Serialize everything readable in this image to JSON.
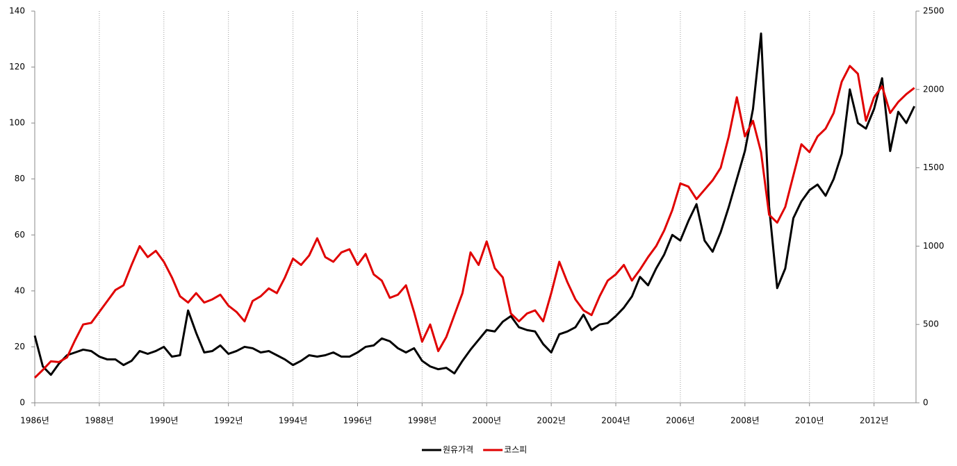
{
  "chart_data": {
    "type": "line",
    "xlim": [
      1986,
      2013.3
    ],
    "xticks": [
      {
        "value": 1986,
        "label": "1986년"
      },
      {
        "value": 1988,
        "label": "1988년"
      },
      {
        "value": 1990,
        "label": "1990년"
      },
      {
        "value": 1992,
        "label": "1992년"
      },
      {
        "value": 1994,
        "label": "1994년"
      },
      {
        "value": 1996,
        "label": "1996년"
      },
      {
        "value": 1998,
        "label": "1998년"
      },
      {
        "value": 2000,
        "label": "2000년"
      },
      {
        "value": 2002,
        "label": "2002년"
      },
      {
        "value": 2004,
        "label": "2004년"
      },
      {
        "value": 2006,
        "label": "2006년"
      },
      {
        "value": 2008,
        "label": "2008년"
      },
      {
        "value": 2010,
        "label": "2010년"
      },
      {
        "value": 2012,
        "label": "2012년"
      }
    ],
    "ylim": [
      0,
      140
    ],
    "yticks": [
      0,
      20,
      40,
      60,
      80,
      100,
      120,
      140
    ],
    "y2lim": [
      0,
      2500
    ],
    "y2ticks": [
      0,
      500,
      1000,
      1500,
      2000,
      2500
    ],
    "grid": true,
    "legend": "bottom",
    "x": [
      1986,
      1986.25,
      1986.5,
      1986.75,
      1987,
      1987.25,
      1987.5,
      1987.75,
      1988,
      1988.25,
      1988.5,
      1988.75,
      1989,
      1989.25,
      1989.5,
      1989.75,
      1990,
      1990.25,
      1990.5,
      1990.75,
      1991,
      1991.25,
      1991.5,
      1991.75,
      1992,
      1992.25,
      1992.5,
      1992.75,
      1993,
      1993.25,
      1993.5,
      1993.75,
      1994,
      1994.25,
      1994.5,
      1994.75,
      1995,
      1995.25,
      1995.5,
      1995.75,
      1996,
      1996.25,
      1996.5,
      1996.75,
      1997,
      1997.25,
      1997.5,
      1997.75,
      1998,
      1998.25,
      1998.5,
      1998.75,
      1999,
      1999.25,
      1999.5,
      1999.75,
      2000,
      2000.25,
      2000.5,
      2000.75,
      2001,
      2001.25,
      2001.5,
      2001.75,
      2002,
      2002.25,
      2002.5,
      2002.75,
      2003,
      2003.25,
      2003.5,
      2003.75,
      2004,
      2004.25,
      2004.5,
      2004.75,
      2005,
      2005.25,
      2005.5,
      2005.75,
      2006,
      2006.25,
      2006.5,
      2006.75,
      2007,
      2007.25,
      2007.5,
      2007.75,
      2008,
      2008.25,
      2008.5,
      2008.75,
      2009,
      2009.25,
      2009.5,
      2009.75,
      2010,
      2010.25,
      2010.5,
      2010.75,
      2011,
      2011.25,
      2011.5,
      2011.75,
      2012,
      2012.25,
      2012.5,
      2012.75,
      2013,
      2013.25
    ],
    "series": [
      {
        "name": "원유가격",
        "color": "#000000",
        "values": [
          24,
          13,
          10,
          14,
          17,
          18,
          19,
          18.5,
          16.5,
          15.5,
          15.5,
          13.5,
          15,
          18.5,
          17.5,
          18.5,
          20,
          16.5,
          17,
          33,
          25,
          18,
          18.5,
          20.5,
          17.5,
          18.5,
          20,
          19.5,
          18,
          18.5,
          17,
          15.5,
          13.5,
          15,
          17,
          16.5,
          17,
          18,
          16.5,
          16.5,
          18,
          20,
          20.5,
          23,
          22,
          19.5,
          18,
          19.5,
          15,
          13,
          12,
          12.5,
          10.5,
          15,
          19,
          22.5,
          26,
          25.5,
          29,
          31,
          27,
          26,
          25.5,
          21,
          18,
          24.5,
          25.5,
          27,
          31.5,
          26,
          28,
          28.5,
          31,
          34,
          38,
          45,
          42,
          48,
          53,
          60,
          58,
          65,
          71,
          58,
          54,
          61,
          70,
          80,
          90,
          105,
          132,
          70,
          41,
          48,
          66,
          72,
          76,
          78,
          74,
          80,
          89,
          112,
          100,
          98,
          105,
          116,
          90,
          104,
          100,
          106
        ]
      },
      {
        "name": "코스피",
        "color": "#e00000",
        "axis": "y2",
        "values": [
          160,
          210,
          265,
          260,
          290,
          400,
          500,
          510,
          580,
          650,
          720,
          750,
          880,
          1000,
          930,
          970,
          900,
          800,
          680,
          640,
          700,
          640,
          660,
          690,
          620,
          580,
          520,
          650,
          680,
          730,
          700,
          800,
          920,
          880,
          940,
          1050,
          930,
          900,
          960,
          980,
          880,
          950,
          820,
          780,
          670,
          690,
          750,
          580,
          390,
          500,
          330,
          420,
          560,
          700,
          960,
          880,
          1030,
          860,
          800,
          570,
          520,
          570,
          590,
          520,
          700,
          900,
          770,
          660,
          590,
          560,
          680,
          780,
          820,
          880,
          780,
          850,
          930,
          1000,
          1100,
          1230,
          1400,
          1380,
          1300,
          1360,
          1420,
          1500,
          1700,
          1950,
          1700,
          1800,
          1600,
          1200,
          1150,
          1250,
          1450,
          1650,
          1600,
          1700,
          1750,
          1850,
          2050,
          2150,
          2100,
          1800,
          1950,
          2020,
          1850,
          1920,
          1970,
          2010
        ]
      }
    ]
  }
}
